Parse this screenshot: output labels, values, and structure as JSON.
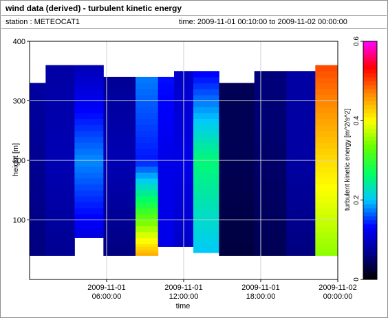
{
  "header": {
    "title": "wind data (derived) - turbulent kinetic energy",
    "station": "station : METEOCAT1",
    "time_range": "time: 2009-11-01 00:10:00 to 2009-11-02 00:00:00"
  },
  "chart_data": {
    "type": "heatmap",
    "xlabel": "time",
    "ylabel": "height [m]",
    "colorbar_label": "turbulent kinetic energy [m^2/s^2]",
    "xlim": [
      "2009-11-01 00:00:00",
      "2009-11-02 00:00:00"
    ],
    "ylim": [
      0,
      400
    ],
    "zlim": [
      0,
      0.6
    ],
    "x_ticks": [
      {
        "value": 6,
        "label_date": "2009-11-01",
        "label_time": "06:00:00"
      },
      {
        "value": 12,
        "label_date": "2009-11-01",
        "label_time": "12:00:00"
      },
      {
        "value": 18,
        "label_date": "2009-11-01",
        "label_time": "18:00:00"
      },
      {
        "value": 24,
        "label_date": "2009-11-02",
        "label_time": "00:00:00"
      }
    ],
    "y_ticks": [
      100,
      200,
      300,
      400
    ],
    "z_ticks": [
      0,
      0.2,
      0.4,
      0.6
    ],
    "grid": true,
    "colormap": [
      "#000000",
      "#00008c",
      "#0000ff",
      "#00c8ff",
      "#00ff64",
      "#64ff00",
      "#ffff00",
      "#ff8c00",
      "#ff0000",
      "#ff00ff"
    ],
    "heights_m": [
      40,
      45,
      50,
      55,
      60,
      70,
      80,
      90,
      100,
      110,
      120,
      130,
      140,
      150,
      160,
      170,
      180,
      190,
      200,
      210,
      220,
      230,
      240,
      250,
      260,
      270,
      280,
      290,
      300,
      310,
      320,
      330,
      340,
      350,
      360
    ],
    "columns": [
      {
        "t": 0.2,
        "top": 330,
        "bottom": 40,
        "tke": [
          0.06,
          0.07,
          0.08
        ]
      },
      {
        "t": 2.5,
        "top": 360,
        "bottom": 40,
        "tke": [
          0.07,
          0.09,
          0.08
        ]
      },
      {
        "t": 4.5,
        "top": 360,
        "bottom": 70,
        "tke": [
          0.1,
          0.18,
          0.09
        ]
      },
      {
        "t": 6.8,
        "top": 345,
        "bottom": 40,
        "tke": [
          0.06,
          0.09,
          0.07
        ]
      },
      {
        "t": 9.5,
        "top": 345,
        "bottom": 40,
        "tke": [
          0.45,
          0.14,
          0.18
        ]
      },
      {
        "t": 10.5,
        "top": 345,
        "bottom": 55,
        "tke": [
          0.12,
          0.12,
          0.14
        ]
      },
      {
        "t": 12.0,
        "top": 355,
        "bottom": 55,
        "tke": [
          0.1,
          0.12,
          0.1
        ]
      },
      {
        "t": 13.5,
        "top": 355,
        "bottom": 45,
        "tke": [
          0.2,
          0.26,
          0.12
        ]
      },
      {
        "t": 16.0,
        "top": 335,
        "bottom": 40,
        "tke": [
          0.03,
          0.04,
          0.04
        ]
      },
      {
        "t": 19.0,
        "top": 355,
        "bottom": 40,
        "tke": [
          0.04,
          0.05,
          0.06
        ]
      },
      {
        "t": 21.0,
        "top": 355,
        "bottom": 40,
        "tke": [
          0.06,
          0.08,
          0.08
        ]
      },
      {
        "t": 23.5,
        "top": 360,
        "bottom": 40,
        "tke": [
          0.35,
          0.42,
          0.5
        ]
      }
    ]
  }
}
